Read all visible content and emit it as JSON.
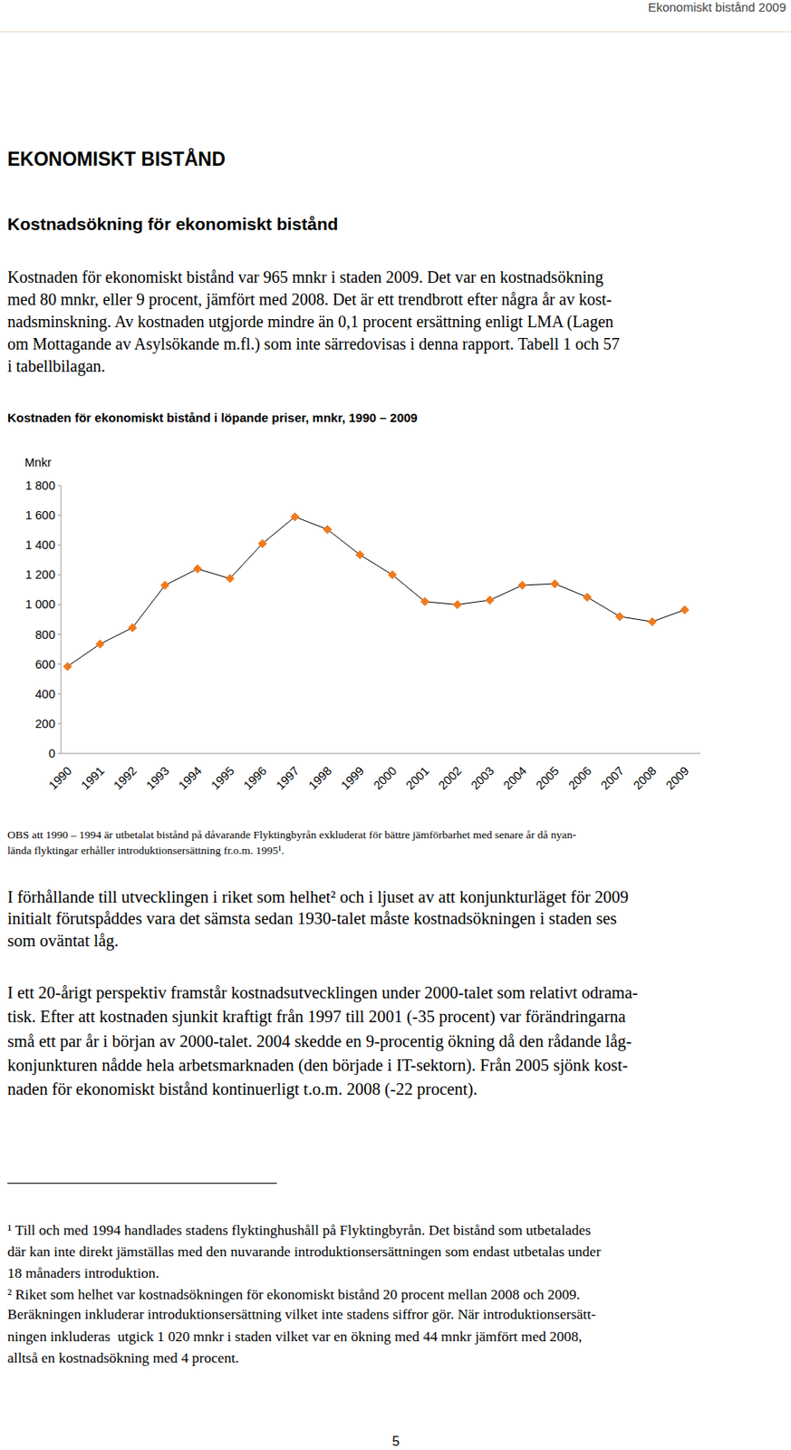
{
  "header": {
    "text": "Ekonomiskt bistånd 2009"
  },
  "title": "EKONOMISKT BISTÅND",
  "subtitle": "Kostnadsökning för ekonomiskt bistånd",
  "paragraphs": [
    {
      "lines": [
        "Kostnaden för ekonomiskt bistånd var 965 mnkr i staden 2009. Det var en kostnadsökning",
        "med 80 mnkr, eller 9 procent, jämfört med 2008. Det är ett trendbrott efter några år av kost-",
        "nadsminskning. Av kostnaden utgjorde mindre än 0,1 procent ersättning enligt LMA (Lagen",
        "om Mottagande av Asylsökande m.fl.) som inte särredovisas i denna rapport. Tabell 1 och 57",
        "i tabellbilagan."
      ]
    },
    {
      "lines": [
        "I förhållande till utvecklingen i riket som helhet² och i ljuset av att konjunkturläget för 2009",
        "initialt förutspåddes vara det sämsta sedan 1930-talet måste kostnadsökningen i staden ses",
        "som oväntat låg."
      ]
    },
    {
      "lines": [
        "I ett 20-årigt perspektiv framstår kostnadsutvecklingen under 2000-talet som relativt odrama-",
        "tisk. Efter att kostnaden sjunkit kraftigt från 1997 till 2001 (-35 procent) var förändringarna",
        "små ett par år i början av 2000-talet. 2004 skedde en 9-procentig ökning då den rådande låg-",
        "konjunkturen nådde hela arbetsmarknaden (den började i IT-sektorn). Från 2005 sjönk kost-",
        "naden för ekonomiskt bistånd kontinuerligt t.o.m. 2008 (-22 procent)."
      ]
    }
  ],
  "chart_data": {
    "type": "line",
    "title": "Kostnaden för ekonomiskt bistånd i löpande priser, mnkr, 1990 – 2009",
    "y_label": "Mnkr",
    "categories": [
      "1990",
      "1991",
      "1992",
      "1993",
      "1994",
      "1995",
      "1996",
      "1997",
      "1998",
      "1999",
      "2000",
      "2001",
      "2002",
      "2003",
      "2004",
      "2005",
      "2006",
      "2007",
      "2008",
      "2009"
    ],
    "values": [
      585,
      735,
      845,
      1130,
      1240,
      1175,
      1410,
      1590,
      1505,
      1335,
      1200,
      1020,
      1000,
      1030,
      1130,
      1140,
      1050,
      920,
      885,
      965
    ],
    "color": "#f07a1e",
    "marker": "diamond",
    "ylim": [
      0,
      1800
    ],
    "yticks": [
      0,
      200,
      400,
      600,
      800,
      {
        "value": 1000,
        "label": "1 000"
      },
      {
        "value": 1200,
        "label": "1 200"
      },
      {
        "value": 1400,
        "label": "1 400"
      },
      {
        "value": 1600,
        "label": "1 600"
      },
      {
        "value": 1800,
        "label": "1 800"
      }
    ],
    "grid": false
  },
  "note": {
    "lines": [
      "OBS att 1990 – 1994 är utbetalat bistånd på dåvarande Flyktingbyrån exkluderat för bättre jämförbarhet med senare år då nyan-",
      "lända flyktingar erhåller introduktionsersättning fr.o.m. 1995¹."
    ]
  },
  "footnotes": [
    {
      "lines": [
        "¹ Till och med 1994 handlades stadens flyktinghushåll på Flyktingbyrån. Det bistånd som utbetalades",
        "där kan inte direkt jämställas med den nuvarande introduktionsersättningen som endast utbetalas under",
        "18 månaders introduktion."
      ]
    },
    {
      "lines": [
        "² Riket som helhet var kostnadsökningen för ekonomiskt bistånd 20 procent mellan 2008 och 2009.",
        "Beräkningen inkluderar introduktionsersättning vilket inte stadens siffror gör. När introduktionsersätt-",
        "ningen inkluderas  utgick 1 020 mnkr i staden vilket var en ökning med 44 mnkr jämfört med 2008,",
        "alltså en kostnadsökning med 4 procent."
      ]
    }
  ],
  "page_number": "5"
}
